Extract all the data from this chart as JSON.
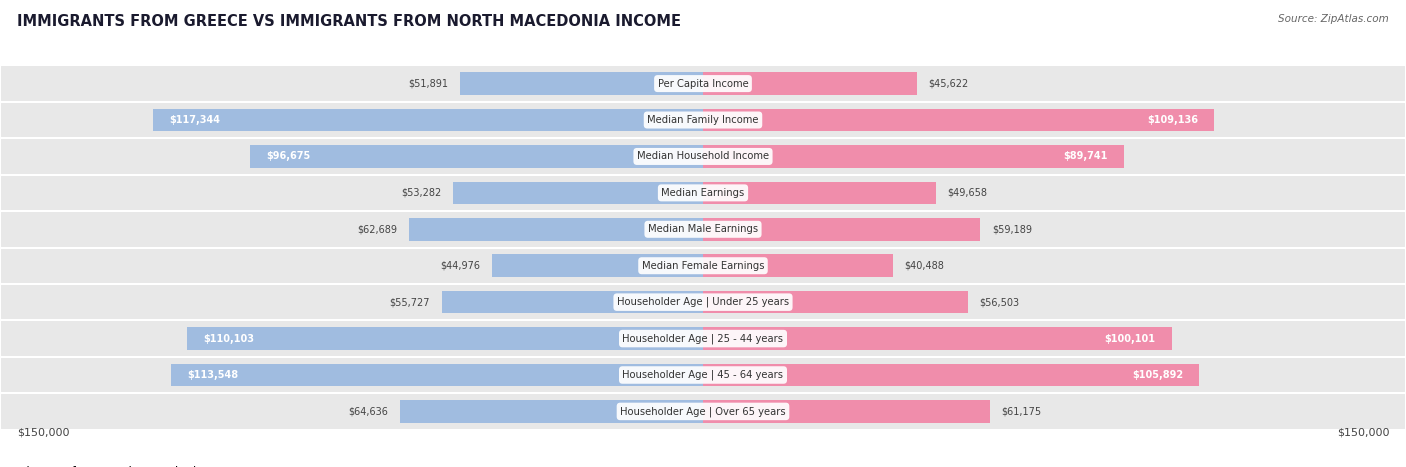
{
  "title": "IMMIGRANTS FROM GREECE VS IMMIGRANTS FROM NORTH MACEDONIA INCOME",
  "source": "Source: ZipAtlas.com",
  "categories": [
    "Per Capita Income",
    "Median Family Income",
    "Median Household Income",
    "Median Earnings",
    "Median Male Earnings",
    "Median Female Earnings",
    "Householder Age | Under 25 years",
    "Householder Age | 25 - 44 years",
    "Householder Age | 45 - 64 years",
    "Householder Age | Over 65 years"
  ],
  "greece_values": [
    51891,
    117344,
    96675,
    53282,
    62689,
    44976,
    55727,
    110103,
    113548,
    64636
  ],
  "macedonia_values": [
    45622,
    109136,
    89741,
    49658,
    59189,
    40488,
    56503,
    100101,
    105892,
    61175
  ],
  "greece_labels": [
    "$51,891",
    "$117,344",
    "$96,675",
    "$53,282",
    "$62,689",
    "$44,976",
    "$55,727",
    "$110,103",
    "$113,548",
    "$64,636"
  ],
  "macedonia_labels": [
    "$45,622",
    "$109,136",
    "$89,741",
    "$49,658",
    "$59,189",
    "$40,488",
    "$56,503",
    "$100,101",
    "$105,892",
    "$61,175"
  ],
  "max_value": 150000,
  "greece_color": "#a0bce0",
  "macedonia_color": "#f08dab",
  "label_inside_threshold": 80000,
  "background_color": "#ffffff",
  "row_bg_color": "#e8e8e8",
  "row_border_color": "#d0d0d0",
  "label_color_outside": "#444444",
  "label_color_inside": "#ffffff"
}
